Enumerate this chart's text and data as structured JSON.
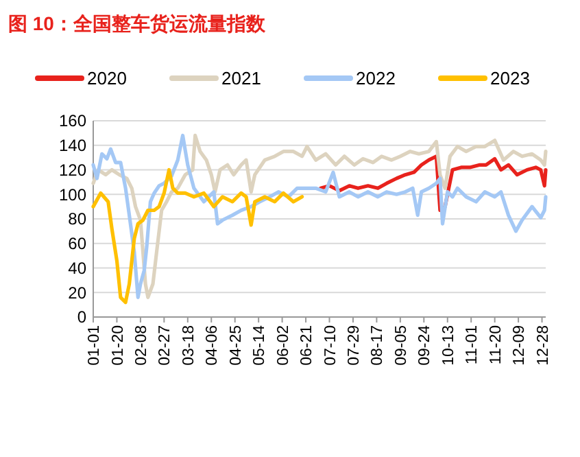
{
  "chart_data": {
    "type": "line",
    "title": "图 10：全国整车货运流量指数",
    "legend": "top",
    "grid": "y",
    "line_style": "solid",
    "marker": "none",
    "xlim": [
      "--01-01",
      "--12-31"
    ],
    "xticks": [
      {
        "value": "--01-01",
        "label": "01-01"
      },
      {
        "value": "--01-20",
        "label": "01-20"
      },
      {
        "value": "--02-08",
        "label": "02-08"
      },
      {
        "value": "--02-27",
        "label": "02-27"
      },
      {
        "value": "--03-18",
        "label": "03-18"
      },
      {
        "value": "--04-06",
        "label": "04-06"
      },
      {
        "value": "--04-25",
        "label": "04-25"
      },
      {
        "value": "--05-14",
        "label": "05-14"
      },
      {
        "value": "--06-02",
        "label": "06-02"
      },
      {
        "value": "--06-21",
        "label": "06-21"
      },
      {
        "value": "--07-10",
        "label": "07-10"
      },
      {
        "value": "--07-29",
        "label": "07-29"
      },
      {
        "value": "--08-17",
        "label": "08-17"
      },
      {
        "value": "--09-05",
        "label": "09-05"
      },
      {
        "value": "--09-24",
        "label": "09-24"
      },
      {
        "value": "--10-13",
        "label": "10-13"
      },
      {
        "value": "--11-01",
        "label": "11-01"
      },
      {
        "value": "--11-20",
        "label": "11-20"
      },
      {
        "value": "--12-09",
        "label": "12-09"
      },
      {
        "value": "--12-28",
        "label": "12-28"
      }
    ],
    "ylim": [
      0,
      160
    ],
    "yticks": [
      0,
      20,
      40,
      60,
      80,
      100,
      120,
      140,
      160
    ],
    "series": [
      {
        "name": "2020",
        "color": "#e8221c",
        "x": [
          "--07-03",
          "--07-10",
          "--07-18",
          "--07-26",
          "--08-02",
          "--08-10",
          "--08-18",
          "--08-25",
          "--09-02",
          "--09-09",
          "--09-16",
          "--09-22",
          "--09-28",
          "--10-04",
          "--10-07",
          "--10-11",
          "--10-17",
          "--10-24",
          "--10-31",
          "--11-08",
          "--11-13",
          "--11-20",
          "--11-25",
          "--12-01",
          "--12-08",
          "--12-16",
          "--12-23",
          "--12-27",
          "--12-30",
          "--12-31"
        ],
        "values": [
          105,
          107,
          103,
          107,
          105,
          107,
          105,
          109,
          113,
          116,
          118,
          124,
          128,
          131,
          87,
          90,
          120,
          122,
          122,
          124,
          124,
          129,
          120,
          124,
          116,
          120,
          122,
          120,
          107,
          120
        ]
      },
      {
        "name": "2021",
        "color": "#ddd3bf",
        "x": [
          "--01-01",
          "--01-05",
          "--01-11",
          "--01-16",
          "--01-22",
          "--01-28",
          "--02-01",
          "--02-04",
          "--02-08",
          "--02-12",
          "--02-14",
          "--02-18",
          "--02-21",
          "--02-25",
          "--03-01",
          "--03-05",
          "--03-10",
          "--03-16",
          "--03-22",
          "--03-24",
          "--03-28",
          "--04-02",
          "--04-06",
          "--04-09",
          "--04-13",
          "--04-19",
          "--04-24",
          "--04-30",
          "--05-04",
          "--05-08",
          "--05-11",
          "--05-19",
          "--05-27",
          "--06-03",
          "--06-11",
          "--06-18",
          "--06-22",
          "--06-29",
          "--07-07",
          "--07-15",
          "--07-22",
          "--07-30",
          "--08-06",
          "--08-14",
          "--08-21",
          "--08-29",
          "--09-05",
          "--09-13",
          "--09-20",
          "--09-28",
          "--10-04",
          "--10-07",
          "--10-11",
          "--10-15",
          "--10-21",
          "--10-28",
          "--11-05",
          "--11-12",
          "--11-20",
          "--11-27",
          "--12-05",
          "--12-12",
          "--12-20",
          "--12-27",
          "--12-30",
          "--12-31"
        ],
        "values": [
          109,
          120,
          116,
          120,
          116,
          113,
          105,
          90,
          79,
          27,
          16,
          27,
          53,
          87,
          94,
          102,
          105,
          116,
          120,
          148,
          135,
          128,
          116,
          102,
          120,
          124,
          116,
          124,
          128,
          102,
          116,
          128,
          131,
          135,
          135,
          131,
          139,
          128,
          133,
          124,
          131,
          124,
          129,
          126,
          131,
          128,
          131,
          135,
          133,
          135,
          143,
          116,
          105,
          131,
          139,
          135,
          139,
          139,
          144,
          128,
          135,
          131,
          133,
          128,
          124,
          135
        ]
      },
      {
        "name": "2022",
        "color": "#a4c8f5",
        "x": [
          "--01-01",
          "--01-04",
          "--01-08",
          "--01-12",
          "--01-15",
          "--01-19",
          "--01-23",
          "--01-27",
          "--01-30",
          "--02-03",
          "--02-06",
          "--02-08",
          "--02-11",
          "--02-13",
          "--02-16",
          "--02-19",
          "--02-23",
          "--02-27",
          "--03-05",
          "--03-10",
          "--03-14",
          "--03-18",
          "--03-23",
          "--03-31",
          "--04-08",
          "--04-11",
          "--04-15",
          "--04-23",
          "--04-30",
          "--05-08",
          "--05-15",
          "--05-23",
          "--05-30",
          "--06-07",
          "--06-14",
          "--06-22",
          "--06-29",
          "--07-07",
          "--07-13",
          "--07-18",
          "--07-26",
          "--08-02",
          "--08-10",
          "--08-18",
          "--08-25",
          "--09-02",
          "--09-09",
          "--09-15",
          "--09-19",
          "--09-22",
          "--09-28",
          "--10-04",
          "--10-07",
          "--10-09",
          "--10-13",
          "--10-17",
          "--10-21",
          "--10-28",
          "--11-05",
          "--11-12",
          "--11-20",
          "--11-25",
          "--12-01",
          "--12-07",
          "--12-12",
          "--12-20",
          "--12-27",
          "--12-30",
          "--12-31"
        ],
        "values": [
          124,
          113,
          133,
          129,
          137,
          126,
          126,
          105,
          83,
          53,
          16,
          27,
          38,
          57,
          94,
          101,
          107,
          109,
          115,
          128,
          148,
          124,
          105,
          94,
          102,
          76,
          79,
          83,
          87,
          90,
          94,
          98,
          102,
          98,
          105,
          105,
          105,
          102,
          118,
          98,
          102,
          98,
          102,
          98,
          102,
          100,
          102,
          105,
          83,
          102,
          105,
          109,
          113,
          76,
          102,
          98,
          105,
          98,
          94,
          102,
          98,
          102,
          83,
          70,
          79,
          90,
          81,
          87,
          98
        ]
      },
      {
        "name": "2023",
        "color": "#ffc000",
        "x": [
          "--01-01",
          "--01-07",
          "--01-13",
          "--01-16",
          "--01-20",
          "--01-23",
          "--01-27",
          "--01-30",
          "--02-03",
          "--02-06",
          "--02-10",
          "--02-14",
          "--02-19",
          "--02-23",
          "--02-27",
          "--03-03",
          "--03-06",
          "--03-10",
          "--03-16",
          "--03-23",
          "--03-31",
          "--04-08",
          "--04-15",
          "--04-23",
          "--04-30",
          "--05-04",
          "--05-08",
          "--05-11",
          "--05-19",
          "--05-27",
          "--06-03",
          "--06-11",
          "--06-18"
        ],
        "values": [
          90,
          101,
          94,
          72,
          46,
          16,
          12,
          27,
          64,
          76,
          79,
          87,
          87,
          90,
          101,
          120,
          105,
          101,
          101,
          98,
          101,
          90,
          98,
          94,
          101,
          98,
          75,
          94,
          98,
          94,
          101,
          94,
          98
        ]
      }
    ]
  }
}
